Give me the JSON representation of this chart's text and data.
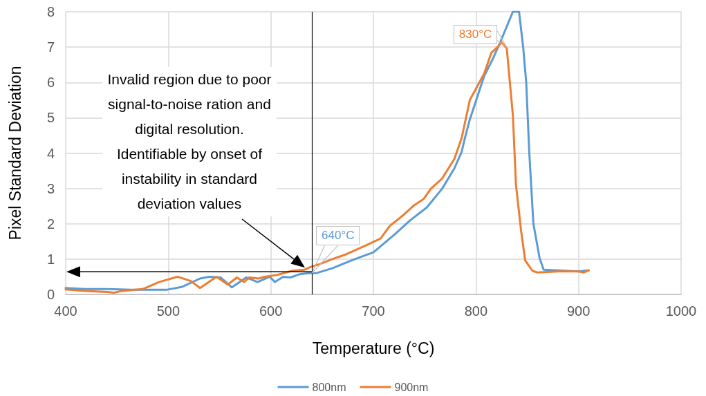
{
  "chart_data": {
    "type": "line",
    "xlabel": "Temperature (°C)",
    "ylabel": "Pixel Standard Deviation",
    "xlim": [
      400,
      1000
    ],
    "xticks": [
      400,
      500,
      600,
      700,
      800,
      900,
      1000
    ],
    "ylim": [
      0,
      8
    ],
    "yticks": [
      0,
      1,
      2,
      3,
      4,
      5,
      6,
      7,
      8
    ],
    "grid": true,
    "legend": "bottom",
    "marker": "none",
    "line_style": "solid",
    "series": [
      {
        "name": "800nm",
        "color": "#5b9bd5",
        "x": [
          400,
          419,
          441,
          464,
          498,
          513,
          531,
          540,
          551,
          562,
          576,
          587,
          599,
          604,
          612,
          619,
          628,
          637,
          644,
          660,
          682,
          700,
          720,
          736,
          752,
          767,
          779,
          786,
          789,
          794,
          808,
          817,
          824,
          836,
          842,
          846,
          849,
          852,
          856,
          862,
          866,
          900,
          910
        ],
        "values": [
          0.18,
          0.15,
          0.15,
          0.13,
          0.13,
          0.21,
          0.45,
          0.5,
          0.48,
          0.2,
          0.48,
          0.35,
          0.5,
          0.35,
          0.5,
          0.48,
          0.57,
          0.6,
          0.6,
          0.74,
          1.0,
          1.19,
          1.68,
          2.1,
          2.46,
          2.99,
          3.57,
          4.03,
          4.4,
          4.95,
          6.18,
          6.7,
          7.16,
          8.0,
          8.0,
          7.0,
          6.0,
          4.0,
          2.0,
          1.03,
          0.7,
          0.65,
          0.68
        ]
      },
      {
        "name": "900nm",
        "color": "#ed7d31",
        "x": [
          400,
          419,
          441,
          447,
          455,
          475,
          491,
          509,
          522,
          531,
          547,
          558,
          567,
          574,
          579,
          588,
          594,
          606,
          621,
          633,
          639,
          646,
          660,
          673,
          693,
          707,
          716,
          729,
          740,
          749,
          756,
          767,
          779,
          786,
          794,
          808,
          815,
          821,
          825,
          830,
          836,
          839,
          844,
          848,
          855,
          860,
          880,
          900,
          905,
          910
        ],
        "values": [
          0.14,
          0.1,
          0.07,
          0.05,
          0.1,
          0.15,
          0.35,
          0.5,
          0.38,
          0.18,
          0.5,
          0.28,
          0.48,
          0.35,
          0.48,
          0.45,
          0.5,
          0.55,
          0.67,
          0.7,
          0.78,
          0.84,
          1.0,
          1.13,
          1.39,
          1.58,
          1.94,
          2.24,
          2.53,
          2.7,
          2.99,
          3.28,
          3.84,
          4.42,
          5.5,
          6.25,
          6.84,
          7.0,
          7.13,
          6.97,
          5.07,
          3.1,
          1.8,
          0.96,
          0.67,
          0.62,
          0.65,
          0.65,
          0.62,
          0.68
        ]
      }
    ],
    "ref_lines": [
      {
        "axis": "x",
        "value": 640,
        "label": null,
        "color": "#000000"
      }
    ],
    "annotations": [
      "Invalid region due to poor signal-to-noise ration and digital resolution. Identifiable by onset of instability in standard deviation values",
      {
        "text": "640°C",
        "x": 640,
        "y": 0.6
      },
      {
        "text": "830°C",
        "x": 830,
        "y": 7.0
      }
    ]
  }
}
